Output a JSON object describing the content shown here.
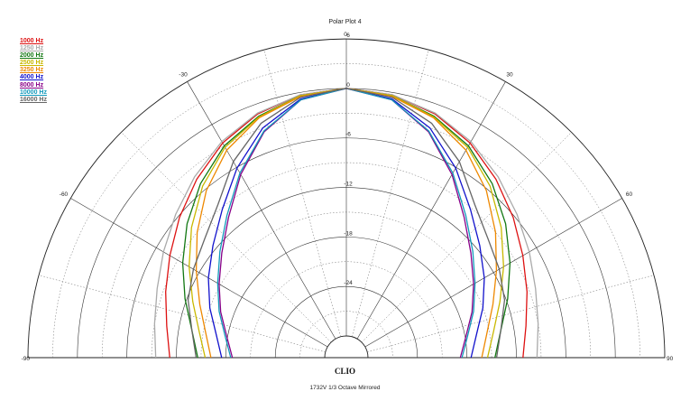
{
  "header": {
    "title": "Polar Plot 4"
  },
  "footer": {
    "brand": "CLIO",
    "caption": "1732V   1/3 Octave   Mirrored"
  },
  "chart_data": {
    "type": "polar",
    "angle_range": [
      -90,
      90
    ],
    "angle_ticks": [
      -90,
      -60,
      -30,
      0,
      30,
      60,
      90
    ],
    "angle_tick_labels": [
      "-90",
      "-60",
      "-30",
      "0",
      "30",
      "60",
      "90"
    ],
    "radial_range": [
      -30,
      6
    ],
    "radial_ticks": [
      6,
      0,
      -6,
      -12,
      -18,
      -24
    ],
    "radial_tick_labels": [
      "6",
      "0",
      "-6",
      "-12",
      "-18",
      "-24"
    ],
    "angle_grid_minor_step": 15,
    "radial_grid_minor_step": 3,
    "mirrored": true,
    "legend_position": "top-left",
    "angles": [
      0,
      10,
      20,
      30,
      40,
      50,
      60,
      70,
      80,
      90
    ],
    "series": [
      {
        "name": "1000 Hz",
        "color": "#dd1111",
        "values": [
          0,
          -0.3,
          -1.2,
          -2.6,
          -4.4,
          -6.2,
          -7.9,
          -9.3,
          -10.5,
          -11.2
        ]
      },
      {
        "name": "1250 Hz",
        "color": "#aaaaaa",
        "values": [
          0,
          -0.3,
          -1.1,
          -2.4,
          -4.0,
          -5.6,
          -7.0,
          -8.2,
          -9.0,
          -9.5
        ]
      },
      {
        "name": "2000 Hz",
        "color": "#117711",
        "values": [
          0,
          -0.4,
          -1.5,
          -3.0,
          -5.1,
          -7.4,
          -9.7,
          -11.8,
          -13.6,
          -14.6
        ]
      },
      {
        "name": "2500 Hz",
        "color": "#c9b800",
        "values": [
          0,
          -0.4,
          -1.6,
          -3.2,
          -5.5,
          -8.1,
          -10.6,
          -12.8,
          -14.5,
          -15.5
        ]
      },
      {
        "name": "3250 Hz",
        "color": "#ee8800",
        "values": [
          0,
          -0.5,
          -1.7,
          -3.6,
          -6.2,
          -9.0,
          -11.6,
          -13.7,
          -15.3,
          -16.2
        ]
      },
      {
        "name": "4000 Hz",
        "color": "#1111cc",
        "values": [
          0,
          -0.8,
          -3.0,
          -6.1,
          -9.2,
          -11.5,
          -13.3,
          -15.0,
          -16.6,
          -17.5
        ]
      },
      {
        "name": "8000 Hz",
        "color": "#880088",
        "values": [
          0,
          -0.9,
          -3.5,
          -7.0,
          -10.4,
          -12.9,
          -14.8,
          -16.4,
          -17.9,
          -18.8
        ]
      },
      {
        "name": "10000 Hz",
        "color": "#1199bb",
        "values": [
          0,
          -0.9,
          -3.4,
          -6.8,
          -10.1,
          -12.6,
          -14.6,
          -16.2,
          -17.7,
          -18.6
        ]
      },
      {
        "name": "16000 Hz",
        "color": "#666666",
        "values": [
          0,
          -0.6,
          -2.4,
          -5.2,
          -8.4,
          -10.2,
          -11.2,
          -12.2,
          -13.6,
          -14.4
        ]
      }
    ]
  }
}
